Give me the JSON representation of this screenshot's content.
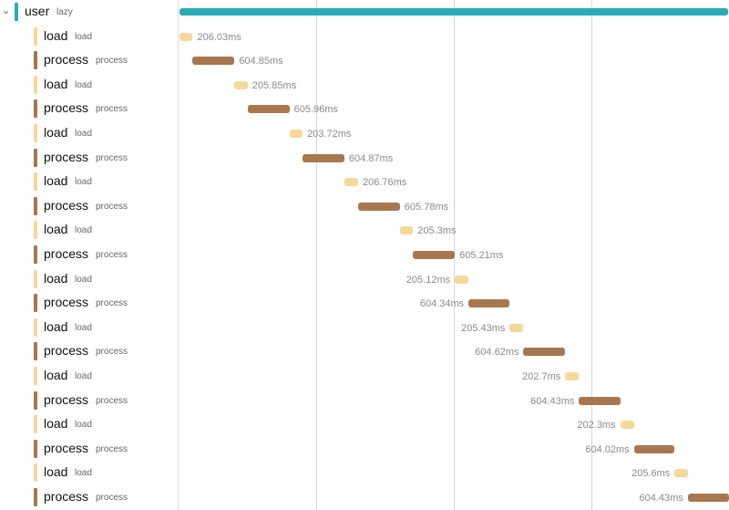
{
  "colors": {
    "user": "#29aab6",
    "load": "#f5d99a",
    "process": "#a8774f"
  },
  "root": {
    "name": "user",
    "sub": "lazy",
    "icon": "chevron-down-icon",
    "range": [
      0,
      1
    ]
  },
  "spans": [
    {
      "name": "load",
      "sub": "load",
      "type": "load",
      "duration": "206.03ms",
      "range": [
        0.0,
        0.024
      ],
      "labelSide": "right"
    },
    {
      "name": "process",
      "sub": "process",
      "type": "process",
      "duration": "604.85ms",
      "range": [
        0.024,
        0.1
      ],
      "labelSide": "right"
    },
    {
      "name": "load",
      "sub": "load",
      "type": "load",
      "duration": "205.85ms",
      "range": [
        0.1,
        0.124
      ],
      "labelSide": "right"
    },
    {
      "name": "process",
      "sub": "process",
      "type": "process",
      "duration": "605.96ms",
      "range": [
        0.124,
        0.2
      ],
      "labelSide": "right"
    },
    {
      "name": "load",
      "sub": "load",
      "type": "load",
      "duration": "203.72ms",
      "range": [
        0.2,
        0.224
      ],
      "labelSide": "right"
    },
    {
      "name": "process",
      "sub": "process",
      "type": "process",
      "duration": "604.87ms",
      "range": [
        0.224,
        0.3
      ],
      "labelSide": "right"
    },
    {
      "name": "load",
      "sub": "load",
      "type": "load",
      "duration": "206.76ms",
      "range": [
        0.3,
        0.325
      ],
      "labelSide": "right"
    },
    {
      "name": "process",
      "sub": "process",
      "type": "process",
      "duration": "605.78ms",
      "range": [
        0.325,
        0.401
      ],
      "labelSide": "right"
    },
    {
      "name": "load",
      "sub": "load",
      "type": "load",
      "duration": "205.3ms",
      "range": [
        0.401,
        0.425
      ],
      "labelSide": "right"
    },
    {
      "name": "process",
      "sub": "process",
      "type": "process",
      "duration": "605.21ms",
      "range": [
        0.425,
        0.501
      ],
      "labelSide": "right"
    },
    {
      "name": "load",
      "sub": "load",
      "type": "load",
      "duration": "205.12ms",
      "range": [
        0.501,
        0.526
      ],
      "labelSide": "left"
    },
    {
      "name": "process",
      "sub": "process",
      "type": "process",
      "duration": "604.34ms",
      "range": [
        0.526,
        0.601
      ],
      "labelSide": "left"
    },
    {
      "name": "load",
      "sub": "load",
      "type": "load",
      "duration": "205.43ms",
      "range": [
        0.601,
        0.626
      ],
      "labelSide": "left"
    },
    {
      "name": "process",
      "sub": "process",
      "type": "process",
      "duration": "604.62ms",
      "range": [
        0.626,
        0.702
      ],
      "labelSide": "left"
    },
    {
      "name": "load",
      "sub": "load",
      "type": "load",
      "duration": "202.7ms",
      "range": [
        0.702,
        0.727
      ],
      "labelSide": "left"
    },
    {
      "name": "process",
      "sub": "process",
      "type": "process",
      "duration": "604.43ms",
      "range": [
        0.727,
        0.802
      ],
      "labelSide": "left"
    },
    {
      "name": "load",
      "sub": "load",
      "type": "load",
      "duration": "202.3ms",
      "range": [
        0.802,
        0.827
      ],
      "labelSide": "left"
    },
    {
      "name": "process",
      "sub": "process",
      "type": "process",
      "duration": "604.02ms",
      "range": [
        0.827,
        0.9
      ],
      "labelSide": "left"
    },
    {
      "name": "load",
      "sub": "load",
      "type": "load",
      "duration": "205.6ms",
      "range": [
        0.901,
        0.925
      ],
      "labelSide": "left"
    },
    {
      "name": "process",
      "sub": "process",
      "type": "process",
      "duration": "604.43ms",
      "range": [
        0.925,
        1.0
      ],
      "labelSide": "left"
    }
  ]
}
